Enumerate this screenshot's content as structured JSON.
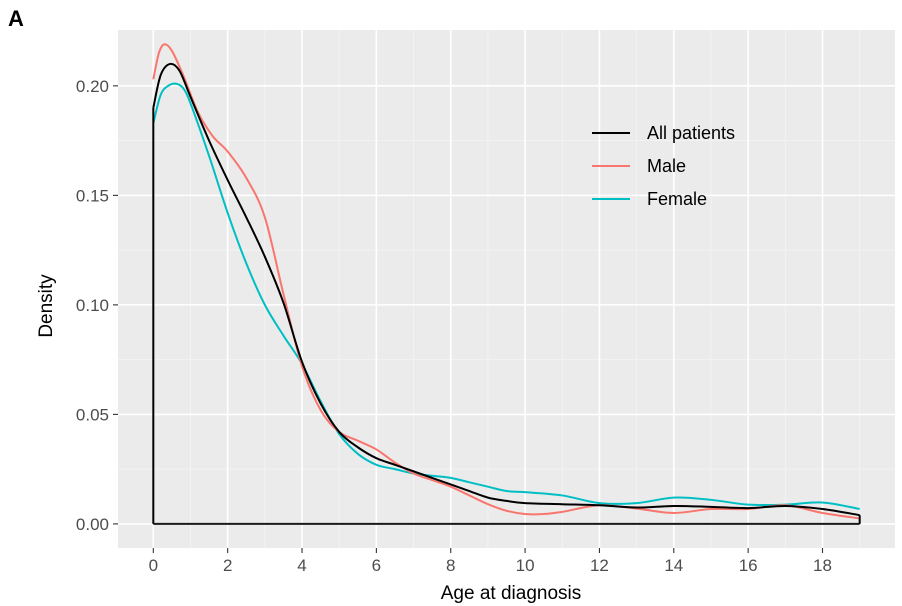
{
  "panel_label": "A",
  "chart_data": {
    "type": "line",
    "title": "",
    "xlabel": "Age at diagnosis",
    "ylabel": "Density",
    "xlim": [
      -0.95,
      19.95
    ],
    "ylim": [
      -0.011,
      0.2255
    ],
    "xticks": [
      0,
      2,
      4,
      6,
      8,
      10,
      12,
      14,
      16,
      18
    ],
    "xtick_labels": [
      "0",
      "2",
      "4",
      "6",
      "8",
      "10",
      "12",
      "14",
      "16",
      "18"
    ],
    "yticks": [
      0.0,
      0.05,
      0.1,
      0.15,
      0.2
    ],
    "ytick_labels": [
      "0.00",
      "0.05",
      "0.10",
      "0.15",
      "0.20"
    ],
    "grid": true,
    "background": "#ebebeb",
    "legend": {
      "position": "top-right"
    },
    "series": [
      {
        "name": "All patients",
        "color": "#000000",
        "x": [
          0,
          0.2,
          0.45,
          0.7,
          1,
          1.5,
          2,
          2.5,
          3,
          3.5,
          4,
          4.5,
          5,
          5.5,
          6,
          6.5,
          7,
          7.5,
          8,
          8.5,
          9,
          9.5,
          10,
          11,
          12,
          13,
          14,
          15,
          16,
          17,
          18,
          19
        ],
        "y": [
          0.19,
          0.205,
          0.21,
          0.207,
          0.195,
          0.175,
          0.157,
          0.14,
          0.122,
          0.101,
          0.074,
          0.055,
          0.042,
          0.035,
          0.03,
          0.027,
          0.024,
          0.021,
          0.018,
          0.015,
          0.012,
          0.0105,
          0.0095,
          0.009,
          0.0085,
          0.0075,
          0.0082,
          0.0078,
          0.0072,
          0.0082,
          0.0068,
          0.004
        ]
      },
      {
        "name": "Male",
        "color": "#f8766d",
        "x": [
          0,
          0.15,
          0.3,
          0.5,
          0.8,
          1.2,
          1.6,
          2,
          2.5,
          3,
          3.5,
          4,
          4.5,
          5,
          5.5,
          6,
          6.5,
          7,
          7.5,
          8,
          8.5,
          9,
          9.5,
          10,
          10.5,
          11,
          12,
          13,
          14,
          15,
          16,
          17,
          18,
          19
        ],
        "y": [
          0.203,
          0.215,
          0.219,
          0.216,
          0.205,
          0.188,
          0.177,
          0.17,
          0.158,
          0.14,
          0.105,
          0.072,
          0.052,
          0.042,
          0.038,
          0.034,
          0.028,
          0.023,
          0.02,
          0.017,
          0.013,
          0.009,
          0.006,
          0.0045,
          0.0045,
          0.0055,
          0.0085,
          0.007,
          0.005,
          0.0068,
          0.0068,
          0.0085,
          0.005,
          0.0025
        ]
      },
      {
        "name": "Female",
        "color": "#00bfc4",
        "x": [
          0,
          0.2,
          0.4,
          0.6,
          0.8,
          1,
          1.5,
          2,
          2.5,
          3,
          3.5,
          4,
          4.5,
          5,
          5.5,
          6,
          6.5,
          7,
          7.5,
          8,
          8.5,
          9,
          9.5,
          10,
          11,
          12,
          13,
          14,
          15,
          16,
          17,
          18,
          19
        ],
        "y": [
          0.183,
          0.196,
          0.2,
          0.201,
          0.199,
          0.192,
          0.168,
          0.142,
          0.119,
          0.1,
          0.086,
          0.073,
          0.056,
          0.041,
          0.032,
          0.027,
          0.025,
          0.023,
          0.022,
          0.021,
          0.019,
          0.017,
          0.015,
          0.0145,
          0.013,
          0.0095,
          0.0095,
          0.012,
          0.011,
          0.0088,
          0.0088,
          0.0098,
          0.0068
        ]
      }
    ]
  }
}
